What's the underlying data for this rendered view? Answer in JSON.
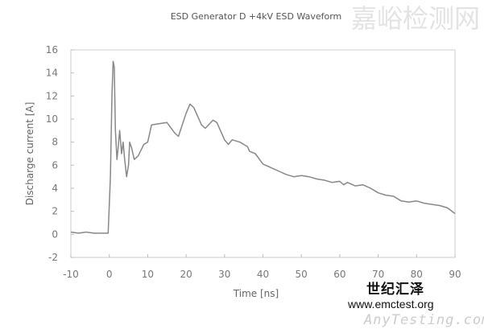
{
  "chart_data": {
    "type": "line",
    "title": "ESD Generator D +4kV ESD Waveform",
    "xlabel": "Time [ns]",
    "ylabel": "Discharge current [A]",
    "xlim": [
      -10,
      90
    ],
    "ylim": [
      -2,
      16
    ],
    "xticks": [
      -10,
      0,
      10,
      20,
      30,
      40,
      50,
      60,
      70,
      80,
      90
    ],
    "yticks": [
      -2,
      0,
      2,
      4,
      6,
      8,
      10,
      12,
      14,
      16
    ],
    "grid": false,
    "legend": "none",
    "series": [
      {
        "color": "#888888",
        "x": [
          -10,
          -8,
          -6,
          -4,
          -2,
          -0.3,
          0.3,
          0.7,
          1,
          1.3,
          1.6,
          2,
          2.3,
          2.7,
          3.2,
          3.6,
          4,
          4.5,
          5,
          5.3,
          5.8,
          6.5,
          7.5,
          9,
          10,
          11,
          13,
          15,
          17,
          18,
          20,
          21,
          22,
          24,
          25,
          27,
          28,
          30,
          31,
          32,
          34,
          35,
          36,
          36.5,
          38,
          40,
          42,
          44,
          46,
          48,
          50,
          52,
          54,
          56,
          58,
          60,
          61,
          62,
          64,
          66,
          68,
          70,
          72,
          74,
          76,
          78,
          80,
          82,
          84,
          86,
          88,
          90
        ],
        "y": [
          0.2,
          0.1,
          0.2,
          0.1,
          0.1,
          0.1,
          5,
          12,
          15,
          14.5,
          9,
          6.5,
          7.5,
          9,
          7,
          8,
          6.5,
          5,
          6,
          8,
          7.5,
          6.5,
          6.8,
          7.8,
          8,
          9.5,
          9.6,
          9.7,
          8.8,
          8.5,
          10.5,
          11.3,
          11,
          9.5,
          9.2,
          9.9,
          9.7,
          8.2,
          7.8,
          8.2,
          8,
          7.8,
          7.6,
          7.2,
          7,
          6.1,
          5.8,
          5.5,
          5.2,
          5,
          5.1,
          5,
          4.8,
          4.7,
          4.5,
          4.6,
          4.3,
          4.5,
          4.2,
          4.3,
          4,
          3.6,
          3.4,
          3.3,
          2.9,
          2.8,
          2.9,
          2.7,
          2.6,
          2.5,
          2.3,
          1.8
        ]
      }
    ]
  },
  "watermarks": {
    "brand_cn": "世纪汇泽",
    "brand_url": "www.emctest.org",
    "site_cn": "嘉峪检测网",
    "site": "AnyTesting.com"
  }
}
